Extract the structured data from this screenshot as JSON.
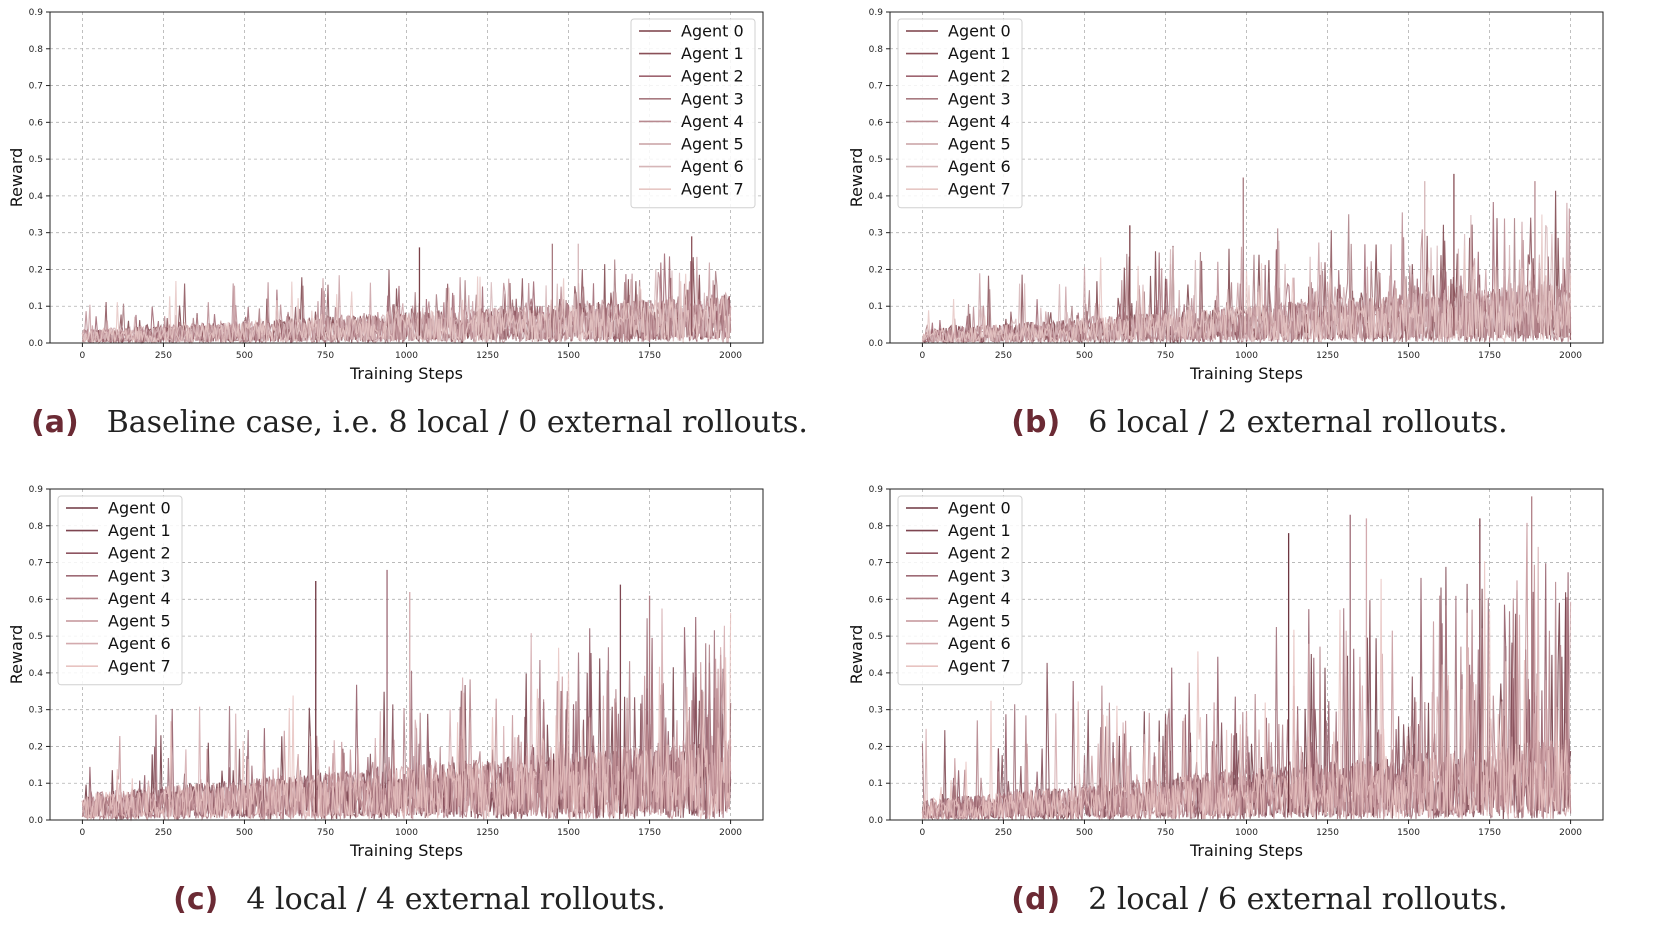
{
  "chart_data": [
    {
      "type": "line",
      "panel_label": "(a)",
      "caption": "Baseline case, i.e. 8 local / 0 external rollouts.",
      "xlabel": "Training Steps",
      "ylabel": "Reward",
      "xlim": [
        -100,
        2100
      ],
      "ylim": [
        0,
        0.9
      ],
      "xticks": [
        0,
        250,
        500,
        750,
        1000,
        1250,
        1500,
        1750,
        2000
      ],
      "yticks": [
        0.0,
        0.1,
        0.2,
        0.3,
        0.4,
        0.5,
        0.6,
        0.7,
        0.8,
        0.9
      ],
      "legend_position": "top-right",
      "series": [
        {
          "name": "Agent 0",
          "color": "#7a3f46"
        },
        {
          "name": "Agent 1",
          "color": "#8a5058"
        },
        {
          "name": "Agent 2",
          "color": "#9e6470"
        },
        {
          "name": "Agent 3",
          "color": "#a87a80"
        },
        {
          "name": "Agent 4",
          "color": "#b88a90"
        },
        {
          "name": "Agent 5",
          "color": "#c9a0a4"
        },
        {
          "name": "Agent 6",
          "color": "#d6b6b8"
        },
        {
          "name": "Agent 7",
          "color": "#e6c7c4"
        }
      ],
      "profile": {
        "steps": 2000,
        "start_level": 0.02,
        "end_level": 0.07,
        "spike_max": 0.29,
        "seed": 11
      },
      "peaks": [
        [
          1040,
          0.26
        ],
        [
          1450,
          0.27
        ],
        [
          1530,
          0.27
        ],
        [
          1880,
          0.29
        ]
      ]
    },
    {
      "type": "line",
      "panel_label": "(b)",
      "caption": "6 local / 2 external rollouts.",
      "xlabel": "Training Steps",
      "ylabel": "Reward",
      "xlim": [
        -100,
        2100
      ],
      "ylim": [
        0,
        0.9
      ],
      "xticks": [
        0,
        250,
        500,
        750,
        1000,
        1250,
        1500,
        1750,
        2000
      ],
      "yticks": [
        0.0,
        0.1,
        0.2,
        0.3,
        0.4,
        0.5,
        0.6,
        0.7,
        0.8,
        0.9
      ],
      "legend_position": "top-left",
      "series": [
        {
          "name": "Agent 0",
          "color": "#7a3f46"
        },
        {
          "name": "Agent 1",
          "color": "#8a5058"
        },
        {
          "name": "Agent 2",
          "color": "#9e6470"
        },
        {
          "name": "Agent 3",
          "color": "#a87a80"
        },
        {
          "name": "Agent 4",
          "color": "#b88a90"
        },
        {
          "name": "Agent 5",
          "color": "#c9a0a4"
        },
        {
          "name": "Agent 6",
          "color": "#d6b6b8"
        },
        {
          "name": "Agent 7",
          "color": "#e6c7c4"
        }
      ],
      "profile": {
        "steps": 2000,
        "start_level": 0.02,
        "end_level": 0.09,
        "spike_max": 0.46,
        "seed": 23
      },
      "peaks": [
        [
          640,
          0.32
        ],
        [
          990,
          0.45
        ],
        [
          1550,
          0.44
        ],
        [
          1640,
          0.46
        ],
        [
          1890,
          0.44
        ]
      ]
    },
    {
      "type": "line",
      "panel_label": "(c)",
      "caption": "4 local / 4 external rollouts.",
      "xlabel": "Training Steps",
      "ylabel": "Reward",
      "xlim": [
        -100,
        2100
      ],
      "ylim": [
        0,
        0.9
      ],
      "xticks": [
        0,
        250,
        500,
        750,
        1000,
        1250,
        1500,
        1750,
        2000
      ],
      "yticks": [
        0.0,
        0.1,
        0.2,
        0.3,
        0.4,
        0.5,
        0.6,
        0.7,
        0.8,
        0.9
      ],
      "legend_position": "top-left",
      "series": [
        {
          "name": "Agent 0",
          "color": "#6e3640"
        },
        {
          "name": "Agent 1",
          "color": "#7e4550"
        },
        {
          "name": "Agent 2",
          "color": "#8e5561"
        },
        {
          "name": "Agent 3",
          "color": "#9e6b76"
        },
        {
          "name": "Agent 4",
          "color": "#b07f86"
        },
        {
          "name": "Agent 5",
          "color": "#c49499"
        },
        {
          "name": "Agent 6",
          "color": "#d3aaae"
        },
        {
          "name": "Agent 7",
          "color": "#e8c3c1"
        }
      ],
      "profile": {
        "steps": 2000,
        "start_level": 0.04,
        "end_level": 0.12,
        "spike_max": 0.68,
        "seed": 37
      },
      "peaks": [
        [
          720,
          0.65
        ],
        [
          940,
          0.68
        ],
        [
          1010,
          0.62
        ],
        [
          1660,
          0.64
        ],
        [
          1750,
          0.61
        ]
      ]
    },
    {
      "type": "line",
      "panel_label": "(d)",
      "caption": "2 local / 6 external rollouts.",
      "xlabel": "Training Steps",
      "ylabel": "Reward",
      "xlim": [
        -100,
        2100
      ],
      "ylim": [
        0,
        0.9
      ],
      "xticks": [
        0,
        250,
        500,
        750,
        1000,
        1250,
        1500,
        1750,
        2000
      ],
      "yticks": [
        0.0,
        0.1,
        0.2,
        0.3,
        0.4,
        0.5,
        0.6,
        0.7,
        0.8,
        0.9
      ],
      "legend_position": "top-left",
      "series": [
        {
          "name": "Agent 0",
          "color": "#6e3640"
        },
        {
          "name": "Agent 1",
          "color": "#7e4550"
        },
        {
          "name": "Agent 2",
          "color": "#8e5561"
        },
        {
          "name": "Agent 3",
          "color": "#9e6b76"
        },
        {
          "name": "Agent 4",
          "color": "#b07f86"
        },
        {
          "name": "Agent 5",
          "color": "#c49499"
        },
        {
          "name": "Agent 6",
          "color": "#d3aaae"
        },
        {
          "name": "Agent 7",
          "color": "#e8c3c1"
        }
      ],
      "profile": {
        "steps": 2000,
        "start_level": 0.03,
        "end_level": 0.12,
        "spike_max": 0.88,
        "seed": 53
      },
      "peaks": [
        [
          1130,
          0.78
        ],
        [
          1320,
          0.83
        ],
        [
          1370,
          0.82
        ],
        [
          1720,
          0.82
        ],
        [
          1880,
          0.88
        ]
      ]
    }
  ]
}
